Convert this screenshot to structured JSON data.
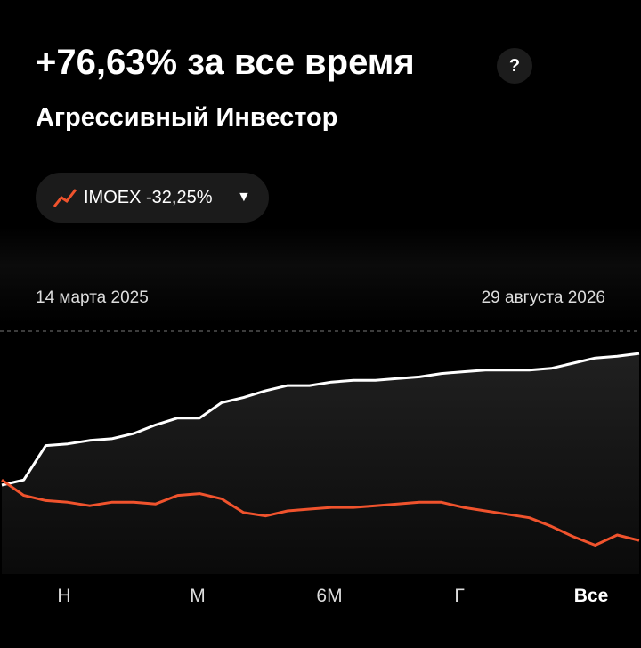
{
  "header": {
    "title": "+76,63% за все время",
    "help": "?",
    "subtitle": "Агрессивный Инвестор"
  },
  "benchmark": {
    "name": "IMOEX",
    "change": "-32,25%"
  },
  "chart_data": {
    "type": "line",
    "date_labels": [
      "14 марта 2025",
      "29 августа 2026"
    ],
    "series": [
      {
        "color": "#ffffff",
        "values": [
          0,
          3,
          23,
          24,
          26,
          27,
          30,
          35,
          39,
          39,
          48,
          51,
          55,
          58,
          58,
          60,
          61,
          61,
          62,
          63,
          65,
          66,
          67,
          67,
          67,
          68,
          71,
          74,
          75,
          76.63
        ]
      },
      {
        "color": "#f0532d",
        "values": [
          3,
          -6,
          -9,
          -10,
          -12,
          -10,
          -10,
          -11,
          -6,
          -5,
          -8,
          -16,
          -18,
          -15,
          -14,
          -13,
          -13,
          -12,
          -11,
          -10,
          -10,
          -13,
          -15,
          -17,
          -19,
          -24,
          -30,
          -35,
          -29,
          -32.25
        ]
      }
    ]
  },
  "periods": [
    "Н",
    "М",
    "6М",
    "Г",
    "Все"
  ],
  "selected_period": 4
}
